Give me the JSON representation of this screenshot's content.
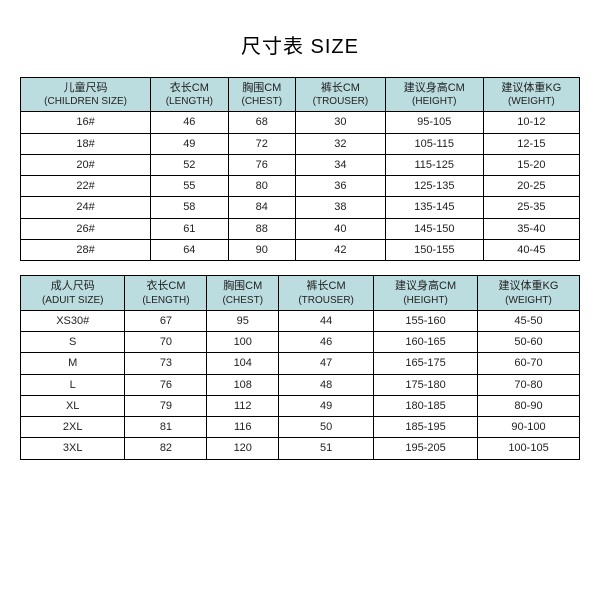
{
  "title": "尺寸表 SIZE",
  "children_table": {
    "type": "table",
    "header_bg": "#bcdde0",
    "border_color": "#000000",
    "columns": [
      {
        "top": "儿童尺码",
        "bottom": "(CHILDREN SIZE)"
      },
      {
        "top": "衣长CM",
        "bottom": "(LENGTH)"
      },
      {
        "top": "胸围CM",
        "bottom": "(CHEST)"
      },
      {
        "top": "裤长CM",
        "bottom": "(TROUSER)"
      },
      {
        "top": "建议身高CM",
        "bottom": "(HEIGHT)"
      },
      {
        "top": "建议体重KG",
        "bottom": "(WEIGHT)"
      }
    ],
    "rows": [
      [
        "16#",
        "46",
        "68",
        "30",
        "95-105",
        "10-12"
      ],
      [
        "18#",
        "49",
        "72",
        "32",
        "105-115",
        "12-15"
      ],
      [
        "20#",
        "52",
        "76",
        "34",
        "115-125",
        "15-20"
      ],
      [
        "22#",
        "55",
        "80",
        "36",
        "125-135",
        "20-25"
      ],
      [
        "24#",
        "58",
        "84",
        "38",
        "135-145",
        "25-35"
      ],
      [
        "26#",
        "61",
        "88",
        "40",
        "145-150",
        "35-40"
      ],
      [
        "28#",
        "64",
        "90",
        "42",
        "150-155",
        "40-45"
      ]
    ]
  },
  "adult_table": {
    "type": "table",
    "header_bg": "#bcdde0",
    "border_color": "#000000",
    "columns": [
      {
        "top": "成人尺码",
        "bottom": "(ADUIT SIZE)"
      },
      {
        "top": "衣长CM",
        "bottom": "(LENGTH)"
      },
      {
        "top": "胸围CM",
        "bottom": "(CHEST)"
      },
      {
        "top": "裤长CM",
        "bottom": "(TROUSER)"
      },
      {
        "top": "建议身高CM",
        "bottom": "(HEIGHT)"
      },
      {
        "top": "建议体重KG",
        "bottom": "(WEIGHT)"
      }
    ],
    "rows": [
      [
        "XS30#",
        "67",
        "95",
        "44",
        "155-160",
        "45-50"
      ],
      [
        "S",
        "70",
        "100",
        "46",
        "160-165",
        "50-60"
      ],
      [
        "M",
        "73",
        "104",
        "47",
        "165-175",
        "60-70"
      ],
      [
        "L",
        "76",
        "108",
        "48",
        "175-180",
        "70-80"
      ],
      [
        "XL",
        "79",
        "112",
        "49",
        "180-185",
        "80-90"
      ],
      [
        "2XL",
        "81",
        "116",
        "50",
        "185-195",
        "90-100"
      ],
      [
        "3XL",
        "82",
        "120",
        "51",
        "195-205",
        "100-105"
      ]
    ]
  }
}
